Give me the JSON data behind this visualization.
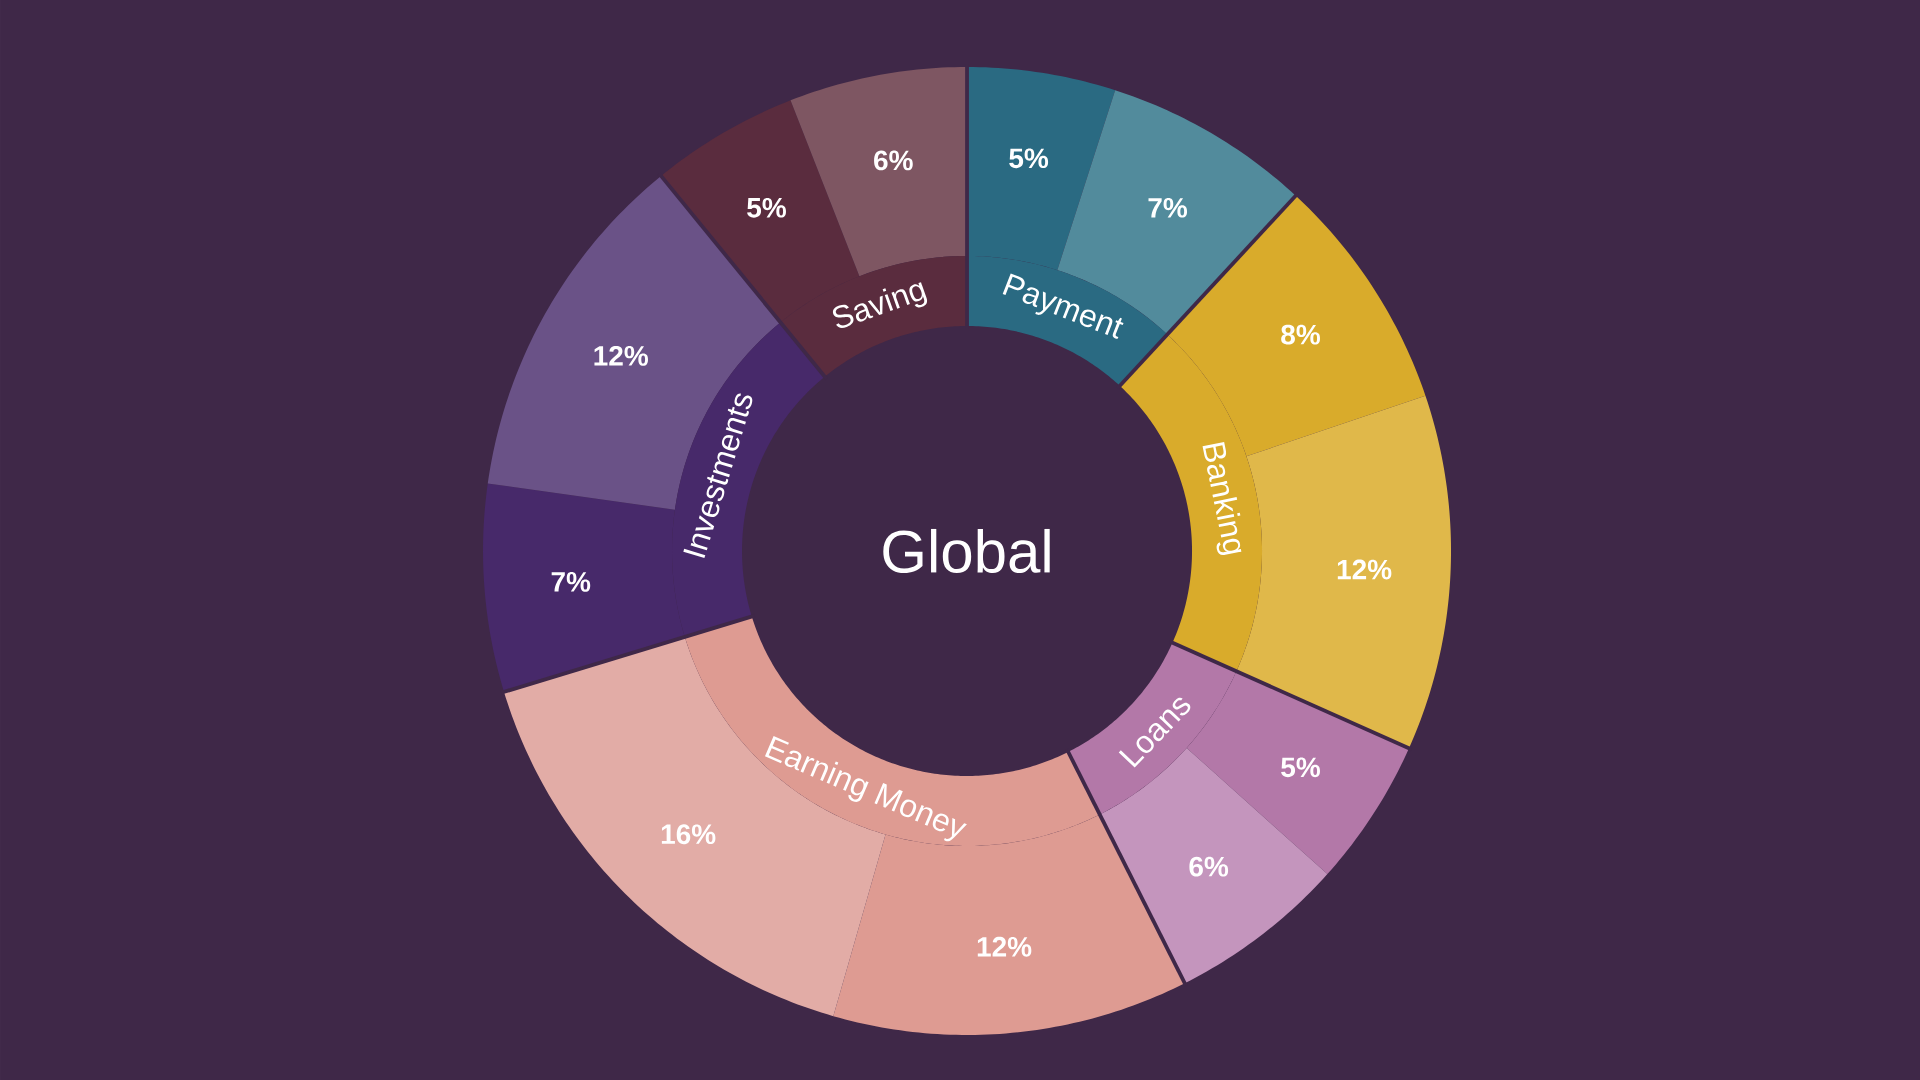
{
  "chart_data": [
    {
      "type": "donut",
      "title": "Global",
      "categories": [
        null,
        null,
        null,
        null,
        null,
        null,
        null,
        null,
        null,
        null,
        null,
        null
      ],
      "values": [
        5,
        7,
        8,
        12,
        5,
        6,
        12,
        16,
        7,
        12,
        5,
        6
      ],
      "colors": [
        "#2a6a82",
        "#528b9c",
        "#d9ab2b",
        "#e0b84a",
        "#b378a8",
        "#c495bd",
        "#de9b92",
        "#e2aca6",
        "#47296a",
        "#6a5287",
        "#5a2c3e",
        "#7e5662"
      ],
      "value_labels": [
        "5%",
        "7%",
        "8%",
        "12%",
        "5%",
        "6%",
        "12%",
        "16%",
        "7%",
        "12%",
        "5%",
        "6%"
      ]
    },
    {
      "type": "donut",
      "categories": [
        "Payment",
        "Banking",
        "Loans",
        "Earning Money",
        "Investments",
        "Saving"
      ],
      "values": [
        12,
        20,
        11,
        28,
        19,
        11
      ],
      "colors": [
        "#2a6a82",
        "#d9ab2b",
        "#b378a8",
        "#de9b92",
        "#47296a",
        "#5a2c3e"
      ]
    }
  ]
}
